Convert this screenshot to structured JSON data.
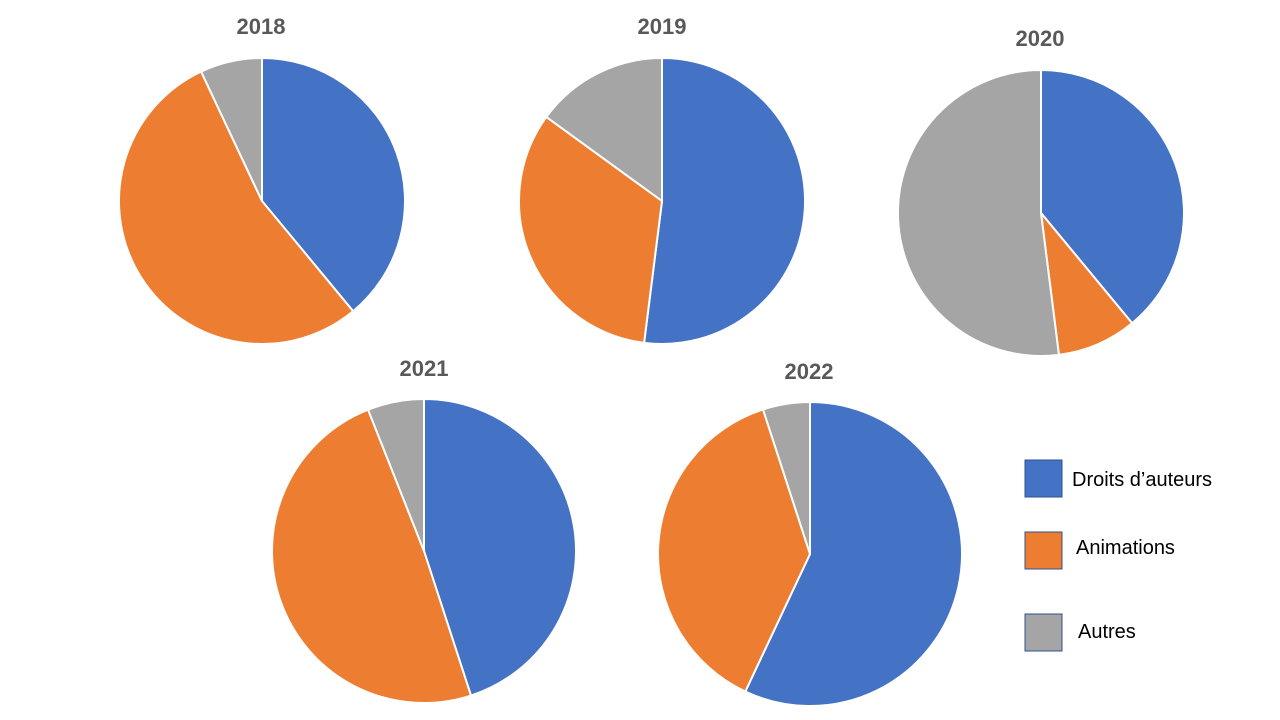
{
  "colors": {
    "droits": "#4472c4",
    "animations": "#ed7d31",
    "autres": "#a5a5a5"
  },
  "chart_data": {
    "type": "pie",
    "categories": [
      "Droits d’auteurs",
      "Animations",
      "Autres"
    ],
    "legend_position": "right",
    "pies": [
      {
        "title": "2018",
        "values": [
          39,
          54,
          7
        ]
      },
      {
        "title": "2019",
        "values": [
          52,
          33,
          15
        ]
      },
      {
        "title": "2020",
        "values": [
          39,
          9,
          52
        ]
      },
      {
        "title": "2021",
        "values": [
          45,
          49,
          6
        ]
      },
      {
        "title": "2022",
        "values": [
          57,
          38,
          5
        ]
      }
    ]
  },
  "legend": {
    "items": [
      {
        "label": "Droits d’auteurs"
      },
      {
        "label": "Animations"
      },
      {
        "label": "Autres"
      }
    ]
  }
}
